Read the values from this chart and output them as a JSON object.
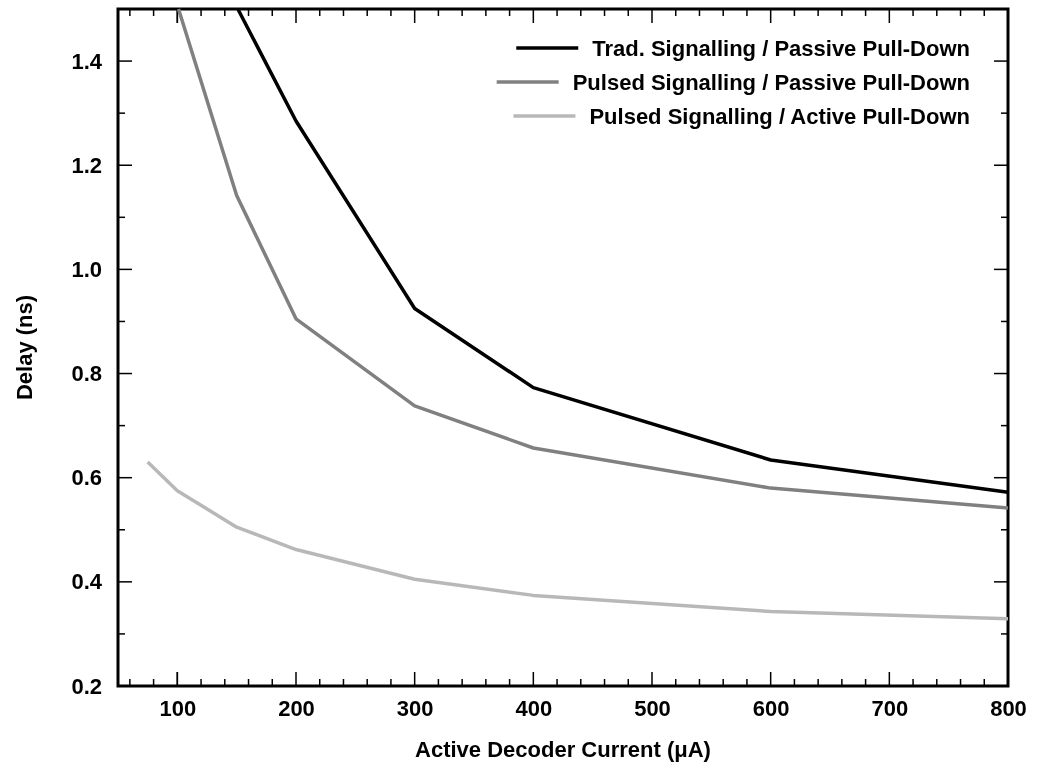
{
  "chart_data": {
    "type": "line",
    "xlabel": "Active Decoder Current (μA)",
    "ylabel": "Delay (ns)",
    "xlim": [
      50,
      800
    ],
    "xticks": [
      100,
      200,
      300,
      400,
      500,
      600,
      700,
      800
    ],
    "ylim": [
      0.2,
      1.5
    ],
    "yticks": [
      0.2,
      0.4,
      0.6,
      0.8,
      {
        "value": 1,
        "label": "1.0"
      },
      1.2,
      1.4
    ],
    "grid": false,
    "legend": "top right",
    "marker": "none",
    "line_style": "solid",
    "series": [
      {
        "name": "Trad. Signalling / Passive Pull-Down",
        "color": "#000000",
        "x": [
          151,
          200,
          300,
          400,
          600,
          800
        ],
        "values": [
          1.5,
          1.285,
          0.925,
          0.773,
          0.634,
          0.572
        ]
      },
      {
        "name": "Pulsed Signalling / Passive Pull-Down",
        "color": "#808080",
        "x": [
          101,
          150,
          200,
          300,
          400,
          600,
          800
        ],
        "values": [
          1.5,
          1.142,
          0.905,
          0.738,
          0.657,
          0.58,
          0.542
        ]
      },
      {
        "name": "Pulsed Signalling / Active Pull-Down",
        "color": "#b8b8b8",
        "x": [
          75,
          100,
          150,
          200,
          300,
          400,
          600,
          800
        ],
        "values": [
          0.63,
          0.575,
          0.505,
          0.462,
          0.405,
          0.374,
          0.343,
          0.329
        ]
      }
    ]
  }
}
